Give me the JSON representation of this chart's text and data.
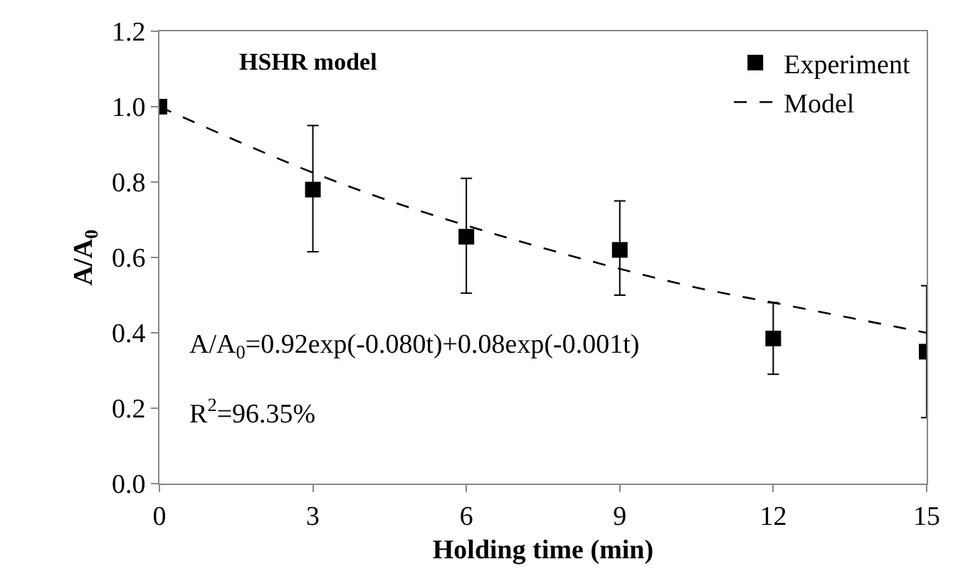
{
  "chart_data": {
    "type": "scatter",
    "xlabel": "Holding time (min)",
    "ylabel": "A/A$_{0}$",
    "x": [
      0,
      3,
      6,
      9,
      12,
      15
    ],
    "series": [
      {
        "name": "Experiment",
        "color": "#000000",
        "marker": "square",
        "values": [
          1.0,
          0.78,
          0.655,
          0.62,
          0.385,
          0.35
        ],
        "errors": [
          null,
          [
            0.615,
            0.95
          ],
          [
            0.505,
            0.81
          ],
          [
            0.5,
            0.75
          ],
          [
            0.29,
            0.48
          ],
          [
            0.175,
            0.525
          ]
        ]
      },
      {
        "name": "Model",
        "type": "line",
        "color": "#000000",
        "marker": "none",
        "line_style": "dashed",
        "x": [
          0,
          1.5,
          3,
          4.5,
          6,
          7.5,
          9,
          10.5,
          12,
          13.5,
          15
        ],
        "values": [
          1.0,
          0.91,
          0.825,
          0.75,
          0.685,
          0.625,
          0.57,
          0.52,
          0.48,
          0.44,
          0.4
        ]
      }
    ],
    "annotations": [
      "HSHR model",
      "A/A$_{0}$=0.92exp(-0.080t)+0.08exp(-0.001t)",
      "R$^{2}$=96.35%"
    ],
    "xlim": [
      0,
      15
    ],
    "xticks": [
      0,
      3,
      6,
      9,
      12,
      15
    ],
    "ylim": [
      0,
      1.2
    ],
    "yticks": [
      {
        "value": 0,
        "label": "0.0"
      },
      {
        "value": 0.2,
        "label": "0.2"
      },
      {
        "value": 0.4,
        "label": "0.4"
      },
      {
        "value": 0.6,
        "label": "0.6"
      },
      {
        "value": 0.8,
        "label": "0.8"
      },
      {
        "value": 1.0,
        "label": "1.0"
      },
      {
        "value": 1.2,
        "label": "1.2"
      }
    ],
    "legend": "top right"
  }
}
